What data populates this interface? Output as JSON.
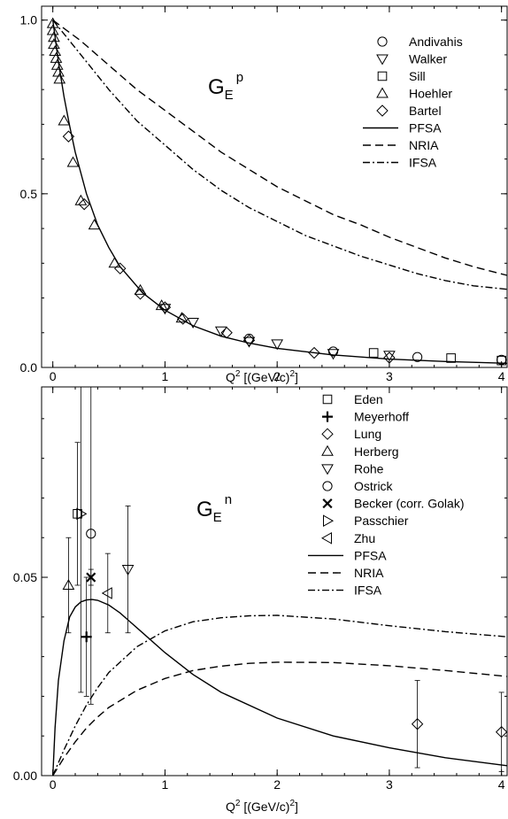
{
  "figure": {
    "x_axis": {
      "label_prefix": "Q",
      "label_sup": "2",
      "label_suffix": " [(GeV/c)",
      "label_sup2": "2",
      "label_end": "]"
    }
  },
  "chart_data": [
    {
      "type": "scatter",
      "title": "G",
      "title_sub": "E",
      "title_sup": "p",
      "xlim": [
        -0.1,
        4.05
      ],
      "ylim": [
        0.0,
        1.04
      ],
      "x_ticks": [
        "0",
        "1",
        "2",
        "3",
        "4"
      ],
      "x_tick_values": [
        0,
        1,
        2,
        3,
        4
      ],
      "y_ticks": [
        "0.0",
        "0.5",
        "1.0"
      ],
      "y_tick_values": [
        0.0,
        0.5,
        1.0
      ],
      "legend_position": "top-right",
      "series": [
        {
          "name": "Andivahis",
          "marker": "circle",
          "points": [
            [
              1.75,
              0.083
            ],
            [
              2.5,
              0.046
            ],
            [
              3.25,
              0.03
            ],
            [
              4.0,
              0.022
            ]
          ]
        },
        {
          "name": "Walker",
          "marker": "triangle-down",
          "points": [
            [
              1.0,
              0.17
            ],
            [
              1.25,
              0.13
            ],
            [
              1.5,
              0.105
            ],
            [
              1.75,
              0.075
            ],
            [
              2.0,
              0.068
            ],
            [
              2.5,
              0.04
            ],
            [
              3.0,
              0.035
            ]
          ]
        },
        {
          "name": "Sill",
          "marker": "square",
          "points": [
            [
              2.86,
              0.042
            ],
            [
              3.55,
              0.027
            ],
            [
              4.0,
              0.02
            ]
          ]
        },
        {
          "name": "Hoehler",
          "marker": "triangle-up",
          "points": [
            [
              0.0,
              0.99
            ],
            [
              0.0,
              0.97
            ],
            [
              0.01,
              0.95
            ],
            [
              0.01,
              0.93
            ],
            [
              0.02,
              0.91
            ],
            [
              0.03,
              0.89
            ],
            [
              0.04,
              0.87
            ],
            [
              0.05,
              0.85
            ],
            [
              0.06,
              0.83
            ],
            [
              0.1,
              0.71
            ],
            [
              0.18,
              0.59
            ],
            [
              0.25,
              0.48
            ],
            [
              0.37,
              0.41
            ],
            [
              0.55,
              0.3
            ],
            [
              0.78,
              0.222
            ],
            [
              0.97,
              0.178
            ],
            [
              1.15,
              0.142
            ]
          ]
        },
        {
          "name": "Bartel",
          "marker": "diamond",
          "points": [
            [
              0.14,
              0.665
            ],
            [
              0.28,
              0.47
            ],
            [
              0.6,
              0.285
            ],
            [
              0.78,
              0.212
            ],
            [
              1.0,
              0.173
            ],
            [
              1.16,
              0.14
            ],
            [
              1.55,
              0.1
            ],
            [
              1.75,
              0.078
            ],
            [
              2.33,
              0.042
            ],
            [
              3.0,
              0.028
            ]
          ]
        }
      ],
      "lines": [
        {
          "name": "PFSA",
          "style": "solid",
          "x": [
            0,
            0.05,
            0.1,
            0.15,
            0.2,
            0.3,
            0.4,
            0.5,
            0.6,
            0.8,
            1.0,
            1.25,
            1.5,
            1.75,
            2.0,
            2.5,
            3.0,
            3.5,
            4.05
          ],
          "y": [
            1.0,
            0.88,
            0.78,
            0.695,
            0.62,
            0.5,
            0.41,
            0.345,
            0.29,
            0.215,
            0.165,
            0.12,
            0.09,
            0.07,
            0.055,
            0.036,
            0.024,
            0.017,
            0.012
          ]
        },
        {
          "name": "NRIA",
          "style": "dashed",
          "x": [
            0,
            0.25,
            0.5,
            0.75,
            1.0,
            1.25,
            1.5,
            1.75,
            2.0,
            2.25,
            2.5,
            2.75,
            3.0,
            3.25,
            3.5,
            3.75,
            4.05
          ],
          "y": [
            1.0,
            0.94,
            0.87,
            0.8,
            0.74,
            0.68,
            0.62,
            0.57,
            0.52,
            0.48,
            0.44,
            0.41,
            0.375,
            0.345,
            0.315,
            0.29,
            0.265
          ]
        },
        {
          "name": "IFSA",
          "style": "dash-dot",
          "x": [
            0,
            0.25,
            0.5,
            0.75,
            1.0,
            1.25,
            1.5,
            1.75,
            2.0,
            2.25,
            2.5,
            2.75,
            3.0,
            3.25,
            3.5,
            3.75,
            4.05
          ],
          "y": [
            1.0,
            0.9,
            0.8,
            0.71,
            0.64,
            0.57,
            0.51,
            0.46,
            0.42,
            0.38,
            0.35,
            0.32,
            0.295,
            0.27,
            0.25,
            0.235,
            0.225
          ]
        }
      ]
    },
    {
      "type": "scatter",
      "title": "G",
      "title_sub": "E",
      "title_sup": "n",
      "xlim": [
        -0.1,
        4.05
      ],
      "ylim": [
        0.0,
        0.098
      ],
      "x_ticks": [
        "0",
        "1",
        "2",
        "3",
        "4"
      ],
      "x_tick_values": [
        0,
        1,
        2,
        3,
        4
      ],
      "y_ticks": [
        "0.00",
        "0.05"
      ],
      "y_tick_values": [
        0.0,
        0.05
      ],
      "legend_position": "top-right",
      "series": [
        {
          "name": "Eden",
          "marker": "square",
          "points": [
            {
              "x": 0.22,
              "y": 0.066,
              "err": 0.018
            }
          ]
        },
        {
          "name": "Meyerhoff",
          "marker": "plus",
          "points": [
            {
              "x": 0.3,
              "y": 0.035,
              "err": 0.015
            }
          ]
        },
        {
          "name": "Lung",
          "marker": "diamond",
          "points": [
            {
              "x": 3.25,
              "y": 0.013,
              "err": 0.011
            },
            {
              "x": 4.0,
              "y": 0.011,
              "err": 0.01
            }
          ]
        },
        {
          "name": "Herberg",
          "marker": "triangle-up",
          "points": [
            {
              "x": 0.14,
              "y": 0.048,
              "err": 0.012
            }
          ]
        },
        {
          "name": "Rohe",
          "marker": "triangle-down",
          "points": [
            {
              "x": 0.67,
              "y": 0.052,
              "err": 0.016
            }
          ]
        },
        {
          "name": "Ostrick",
          "marker": "circle",
          "points": [
            {
              "x": 0.34,
              "y": 0.061,
              "err": 0.043
            }
          ]
        },
        {
          "name": "Becker (corr. Golak)",
          "marker": "cross",
          "points": [
            {
              "x": 0.34,
              "y": 0.05,
              "err": 0.002
            }
          ]
        },
        {
          "name": "Passchier",
          "marker": "triangle-right",
          "points": [
            {
              "x": 0.25,
              "y": 0.066,
              "err": 0.045
            }
          ]
        },
        {
          "name": "Zhu",
          "marker": "triangle-left",
          "points": [
            {
              "x": 0.49,
              "y": 0.046,
              "err": 0.01
            }
          ]
        }
      ],
      "lines": [
        {
          "name": "PFSA",
          "style": "solid",
          "x": [
            0,
            0.02,
            0.05,
            0.1,
            0.15,
            0.2,
            0.25,
            0.3,
            0.35,
            0.4,
            0.5,
            0.6,
            0.7,
            0.8,
            1.0,
            1.25,
            1.5,
            2.0,
            2.5,
            3.0,
            3.5,
            4.05
          ],
          "y": [
            0.0,
            0.012,
            0.024,
            0.034,
            0.04,
            0.0425,
            0.0438,
            0.0443,
            0.0444,
            0.0442,
            0.043,
            0.041,
            0.0385,
            0.036,
            0.031,
            0.0255,
            0.021,
            0.0145,
            0.01,
            0.007,
            0.0045,
            0.0025
          ]
        },
        {
          "name": "NRIA",
          "style": "dashed",
          "x": [
            0,
            0.1,
            0.2,
            0.3,
            0.4,
            0.5,
            0.75,
            1.0,
            1.25,
            1.5,
            1.75,
            2.0,
            2.5,
            3.0,
            3.5,
            4.05
          ],
          "y": [
            0.0,
            0.0045,
            0.0085,
            0.012,
            0.0148,
            0.0172,
            0.0215,
            0.0245,
            0.0265,
            0.0276,
            0.0283,
            0.0286,
            0.0285,
            0.0277,
            0.0265,
            0.025
          ]
        },
        {
          "name": "IFSA",
          "style": "dash-dot",
          "x": [
            0,
            0.1,
            0.2,
            0.3,
            0.4,
            0.5,
            0.75,
            1.0,
            1.25,
            1.5,
            1.75,
            2.0,
            2.5,
            3.0,
            3.5,
            4.05
          ],
          "y": [
            0.0,
            0.0065,
            0.0125,
            0.0178,
            0.0222,
            0.026,
            0.0325,
            0.0365,
            0.0388,
            0.0398,
            0.0403,
            0.0404,
            0.0395,
            0.0378,
            0.0363,
            0.035
          ]
        }
      ]
    }
  ]
}
